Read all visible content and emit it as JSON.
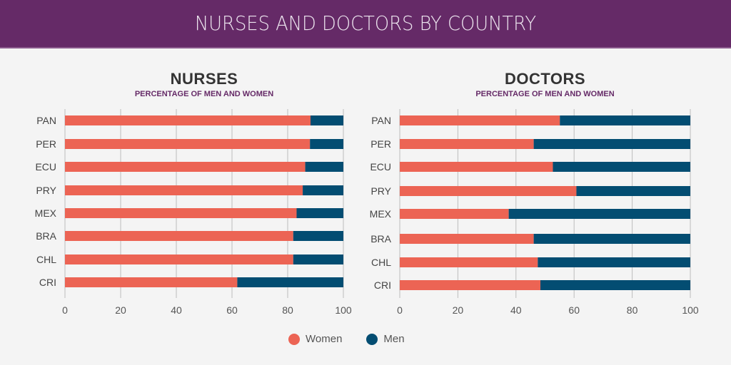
{
  "header": {
    "title": "NURSES AND DOCTORS BY COUNTRY"
  },
  "colors": {
    "women": "#ec6454",
    "men": "#034d72",
    "banner": "#652a67",
    "grid": "#bdbdbd"
  },
  "legend": {
    "women": "Women",
    "men": "Men"
  },
  "chart_data": [
    {
      "type": "bar",
      "stacked": true,
      "orientation": "horizontal",
      "title": "NURSES",
      "subtitle": "PERCENTAGE OF MEN AND WOMEN",
      "categories": [
        "PAN",
        "PER",
        "ECU",
        "PRY",
        "MEX",
        "BRA",
        "CHL",
        "CRI"
      ],
      "series": [
        {
          "name": "Women",
          "values": [
            88.2,
            88.0,
            86.3,
            85.4,
            83.2,
            82.0,
            82.0,
            61.9
          ]
        },
        {
          "name": "Men",
          "values": [
            11.8,
            12.0,
            13.7,
            14.6,
            16.8,
            18.0,
            18.0,
            38.1
          ]
        }
      ],
      "xlim": [
        0,
        100
      ],
      "xticks": [
        "0",
        "20",
        "40",
        "60",
        "80",
        "100"
      ],
      "grid": true,
      "legend": "bottom-center"
    },
    {
      "type": "bar",
      "stacked": true,
      "orientation": "horizontal",
      "title": "DOCTORS",
      "subtitle": "PERCENTAGE OF MEN AND WOMEN",
      "categories": [
        "PAN",
        "PER",
        "ECU",
        "PRY",
        "MEX",
        "BRA",
        "CHL",
        "CRI"
      ],
      "series": [
        {
          "name": "Women",
          "values": [
            55.1,
            46.1,
            52.7,
            60.8,
            37.5,
            46.1,
            47.5,
            48.4
          ]
        },
        {
          "name": "Men",
          "values": [
            44.9,
            53.9,
            47.3,
            39.2,
            62.5,
            53.9,
            52.5,
            51.6
          ]
        }
      ],
      "xlim": [
        0,
        100
      ],
      "xticks": [
        "0",
        "20",
        "40",
        "60",
        "80",
        "100"
      ],
      "grid": true,
      "legend": "bottom-center"
    }
  ]
}
